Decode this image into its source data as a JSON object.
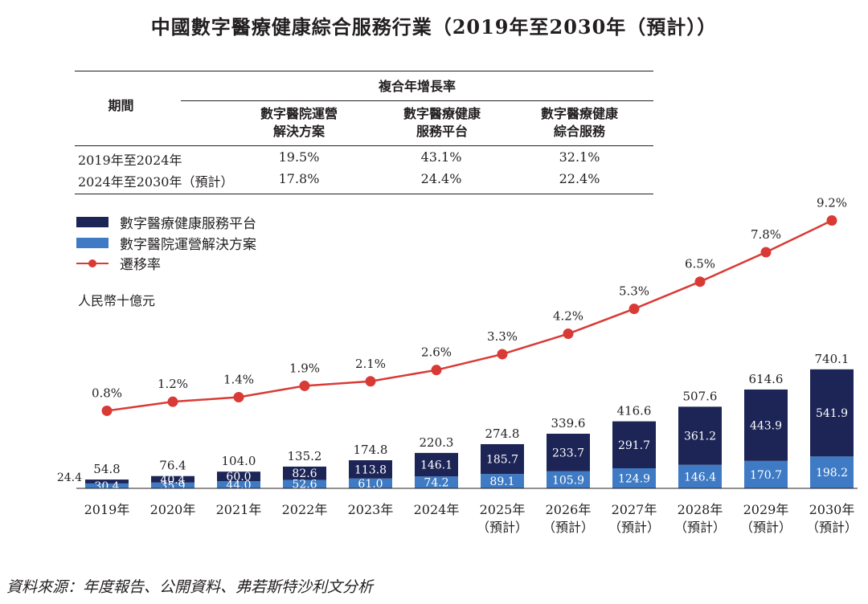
{
  "title": "中國數字醫療健康綜合服務行業（2019年至2030年（預計））",
  "table": {
    "period_header": "期間",
    "group_header": "複合年增長率",
    "columns": [
      [
        "數字醫院運營",
        "解決方案"
      ],
      [
        "數字醫療健康",
        "服務平台"
      ],
      [
        "數字醫療健康",
        "綜合服務"
      ]
    ],
    "rows": [
      {
        "period": "2019年至2024年",
        "values": [
          "19.5%",
          "43.1%",
          "32.1%"
        ]
      },
      {
        "period": "2024年至2030年（預計）",
        "values": [
          "17.8%",
          "24.4%",
          "22.4%"
        ]
      }
    ]
  },
  "legend": {
    "platform": "數字醫療健康服務平台",
    "hospital": "數字醫院運營解決方案",
    "rate": "遷移率"
  },
  "unit": "人民幣十億元",
  "source": "資料來源：年度報告、公開資料、弗若斯特沙利文分析",
  "colors": {
    "platform": "#1c2556",
    "hospital": "#3e7bc4",
    "rate": "#d93a35"
  },
  "chart_data": {
    "type": "bar",
    "stacked": true,
    "categories": [
      "2019年",
      "2020年",
      "2021年",
      "2022年",
      "2023年",
      "2024年",
      "2025年",
      "2026年",
      "2027年",
      "2028年",
      "2029年",
      "2030年"
    ],
    "category_notes": [
      "",
      "",
      "",
      "",
      "",
      "",
      "（預計）",
      "（預計）",
      "（預計）",
      "（預計）",
      "（預計）",
      "（預計）"
    ],
    "series": [
      {
        "name": "數字醫院運營解決方案",
        "values": [
          30.4,
          35.9,
          44.0,
          52.6,
          61.0,
          74.2,
          89.1,
          105.9,
          124.9,
          146.4,
          170.7,
          198.2
        ]
      },
      {
        "name": "數字醫療健康服務平台",
        "values": [
          24.4,
          40.4,
          60.0,
          82.6,
          113.8,
          146.1,
          185.7,
          233.7,
          291.7,
          361.2,
          443.9,
          541.9
        ]
      }
    ],
    "totals": [
      54.8,
      76.4,
      104.0,
      135.2,
      174.8,
      220.3,
      274.8,
      339.6,
      416.6,
      507.6,
      614.6,
      740.1
    ],
    "line": {
      "name": "遷移率",
      "values": [
        0.8,
        1.2,
        1.4,
        1.9,
        2.1,
        2.6,
        3.3,
        4.2,
        5.3,
        6.5,
        7.8,
        9.2
      ],
      "labels": [
        "0.8%",
        "1.2%",
        "1.4%",
        "1.9%",
        "2.1%",
        "2.6%",
        "3.3%",
        "4.2%",
        "5.3%",
        "6.5%",
        "7.8%",
        "9.2%"
      ]
    },
    "ylabel": "人民幣十億元"
  }
}
